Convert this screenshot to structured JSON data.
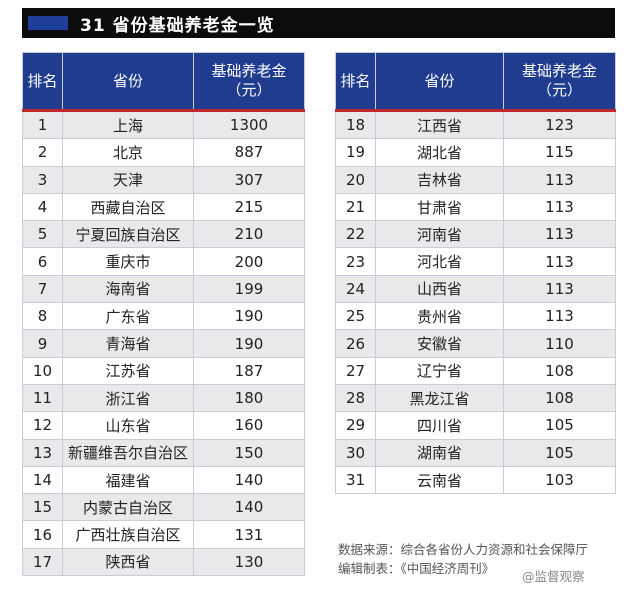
{
  "title": "31 省份基础养老金一览",
  "headers": {
    "rank": "排名",
    "province": "省份",
    "amount_line1": "基础养老金",
    "amount_line2": "（元）"
  },
  "left_rows": [
    {
      "rank": "1",
      "province": "上海",
      "amount": "1300"
    },
    {
      "rank": "2",
      "province": "北京",
      "amount": "887"
    },
    {
      "rank": "3",
      "province": "天津",
      "amount": "307"
    },
    {
      "rank": "4",
      "province": "西藏自治区",
      "amount": "215"
    },
    {
      "rank": "5",
      "province": "宁夏回族自治区",
      "amount": "210"
    },
    {
      "rank": "6",
      "province": "重庆市",
      "amount": "200"
    },
    {
      "rank": "7",
      "province": "海南省",
      "amount": "199"
    },
    {
      "rank": "8",
      "province": "广东省",
      "amount": "190"
    },
    {
      "rank": "9",
      "province": "青海省",
      "amount": "190"
    },
    {
      "rank": "10",
      "province": "江苏省",
      "amount": "187"
    },
    {
      "rank": "11",
      "province": "浙江省",
      "amount": "180"
    },
    {
      "rank": "12",
      "province": "山东省",
      "amount": "160"
    },
    {
      "rank": "13",
      "province": "新疆维吾尔自治区",
      "amount": "150"
    },
    {
      "rank": "14",
      "province": "福建省",
      "amount": "140"
    },
    {
      "rank": "15",
      "province": "内蒙古自治区",
      "amount": "140"
    },
    {
      "rank": "16",
      "province": "广西壮族自治区",
      "amount": "131"
    },
    {
      "rank": "17",
      "province": "陕西省",
      "amount": "130"
    }
  ],
  "right_rows": [
    {
      "rank": "18",
      "province": "江西省",
      "amount": "123"
    },
    {
      "rank": "19",
      "province": "湖北省",
      "amount": "115"
    },
    {
      "rank": "20",
      "province": "吉林省",
      "amount": "113"
    },
    {
      "rank": "21",
      "province": "甘肃省",
      "amount": "113"
    },
    {
      "rank": "22",
      "province": "河南省",
      "amount": "113"
    },
    {
      "rank": "23",
      "province": "河北省",
      "amount": "113"
    },
    {
      "rank": "24",
      "province": "山西省",
      "amount": "113"
    },
    {
      "rank": "25",
      "province": "贵州省",
      "amount": "113"
    },
    {
      "rank": "26",
      "province": "安徽省",
      "amount": "110"
    },
    {
      "rank": "27",
      "province": "辽宁省",
      "amount": "108"
    },
    {
      "rank": "28",
      "province": "黑龙江省",
      "amount": "108"
    },
    {
      "rank": "29",
      "province": "四川省",
      "amount": "105"
    },
    {
      "rank": "30",
      "province": "湖南省",
      "amount": "105"
    },
    {
      "rank": "31",
      "province": "云南省",
      "amount": "103"
    }
  ],
  "source_line": "数据来源：综合各省份人力资源和社会保障厅",
  "editor_line": "编辑制表：《中国经济周刊》",
  "watermark": "@监督观察"
}
